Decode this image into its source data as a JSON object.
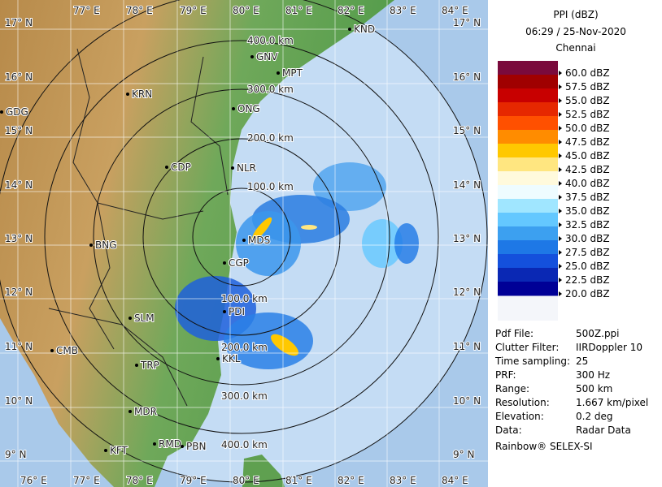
{
  "header": {
    "title": "PPI (dBZ)",
    "time": "06:29 / 25-Nov-2020",
    "station": "Chennai"
  },
  "legend": {
    "items": [
      {
        "label": "60.0 dBZ",
        "color": "#7a0a3c"
      },
      {
        "label": "57.5 dBZ",
        "color": "#a00000"
      },
      {
        "label": "55.0 dBZ",
        "color": "#c80000"
      },
      {
        "label": "52.5 dBZ",
        "color": "#e62800"
      },
      {
        "label": "50.0 dBZ",
        "color": "#ff5000"
      },
      {
        "label": "47.5 dBZ",
        "color": "#ff8c00"
      },
      {
        "label": "45.0 dBZ",
        "color": "#ffc800"
      },
      {
        "label": "42.5 dBZ",
        "color": "#ffe680"
      },
      {
        "label": "40.0 dBZ",
        "color": "#fffadc"
      },
      {
        "label": "37.5 dBZ",
        "color": "#eefcff"
      },
      {
        "label": "35.0 dBZ",
        "color": "#a0e6ff"
      },
      {
        "label": "32.5 dBZ",
        "color": "#64c8ff"
      },
      {
        "label": "30.0 dBZ",
        "color": "#3ca0f0"
      },
      {
        "label": "27.5 dBZ",
        "color": "#1e78e6"
      },
      {
        "label": "25.0 dBZ",
        "color": "#1450dc"
      },
      {
        "label": "22.5 dBZ",
        "color": "#0a28b4"
      },
      {
        "label": "20.0 dBZ",
        "color": "#000096"
      }
    ]
  },
  "info": {
    "rows": [
      [
        "Pdf File:",
        "500Z.ppi"
      ],
      [
        "Clutter Filter:",
        "IIRDoppler 10"
      ],
      [
        "Time sampling:",
        "25"
      ],
      [
        "PRF:",
        "300 Hz"
      ],
      [
        "Range:",
        "500 km"
      ],
      [
        "Resolution:",
        "1.667 km/pixel"
      ],
      [
        "Elevation:",
        "0.2 deg"
      ],
      [
        "Data:",
        "Radar Data"
      ]
    ]
  },
  "footer": "Rainbow® SELEX-SI",
  "map": {
    "lon_labels_top": [
      "77° E",
      "78° E",
      "79° E",
      "80° E",
      "81° E",
      "82° E",
      "83° E",
      "84° E"
    ],
    "lon_labels_bottom": [
      "76° E",
      "77° E",
      "78° E",
      "79° E",
      "80° E",
      "81° E",
      "82° E",
      "83° E",
      "84° E"
    ],
    "lat_labels_left": [
      "17° N",
      "16° N",
      "15° N",
      "14° N",
      "13° N",
      "12° N",
      "11° N",
      "10° N",
      "9° N"
    ],
    "lat_labels_right": [
      "17° N",
      "16° N",
      "15° N",
      "14° N",
      "13° N",
      "12° N",
      "11° N",
      "10° N",
      "9° N"
    ],
    "range_labels_north": [
      "400.0 km",
      "300.0 km",
      "200.0 km",
      "100.0 km"
    ],
    "range_labels_south": [
      "100.0 km",
      "200.0 km",
      "300.0 km",
      "400.0 km"
    ],
    "cities": [
      "KND",
      "GNV",
      "MPT",
      "KRN",
      "ONG",
      "GDG",
      "CDP",
      "NLR",
      "BNG",
      "MDS",
      "CGP",
      "SLM",
      "PDI",
      "CMB",
      "TRP",
      "KKL",
      "MDR",
      "KFT",
      "RMD",
      "PBN"
    ]
  }
}
